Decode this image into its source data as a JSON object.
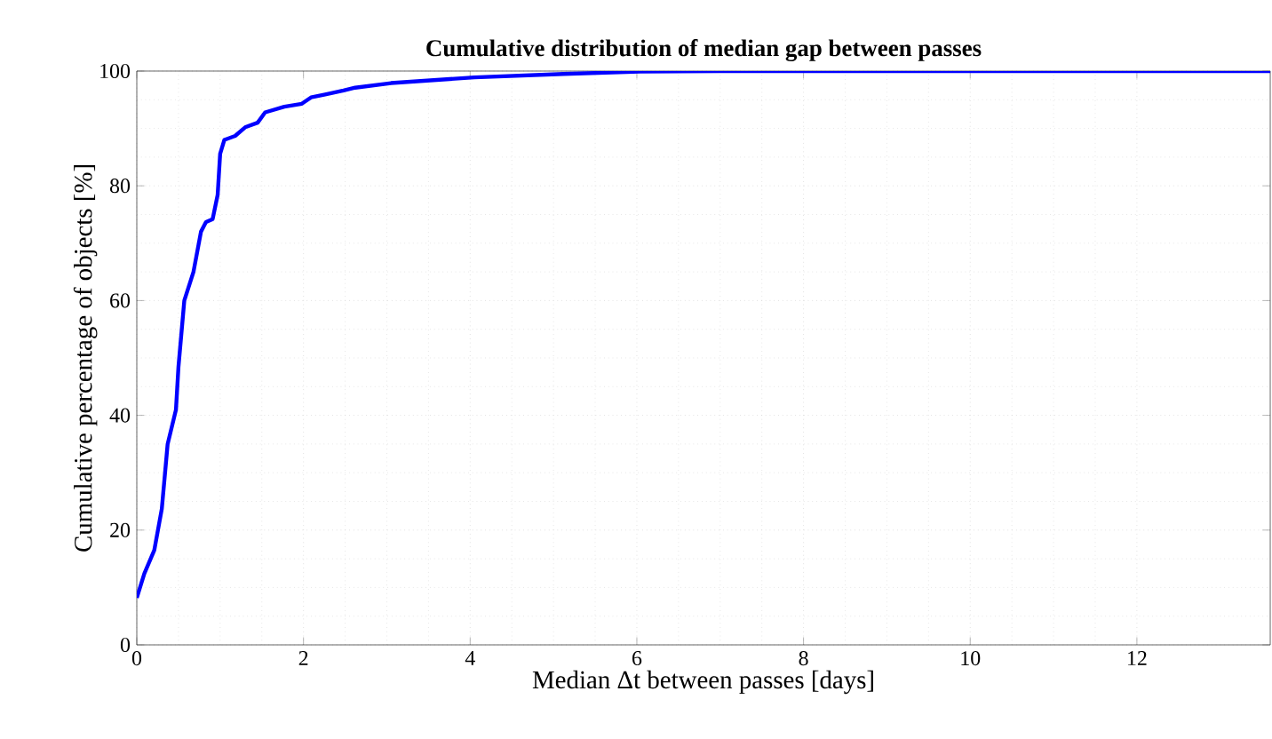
{
  "chart_data": {
    "type": "line",
    "title": "Cumulative distribution of median gap between passes",
    "xlabel": "Median Δt between passes [days]",
    "ylabel": "Cumulative percentage of objects [%]",
    "xlim": [
      0,
      13.6
    ],
    "ylim": [
      0,
      100
    ],
    "xticks": [
      0,
      2,
      4,
      6,
      8,
      10,
      12
    ],
    "yticks": [
      0,
      20,
      40,
      60,
      80,
      100
    ],
    "grid": true,
    "line_style": "solid",
    "marker": "none",
    "series": [
      {
        "color": "#0000ff",
        "x": [
          0,
          0.09,
          0.21,
          0.3,
          0.37,
          0.47,
          0.5,
          0.57,
          0.68,
          0.77,
          0.83,
          0.91,
          0.97,
          1.0,
          1.05,
          1.18,
          1.3,
          1.45,
          1.54,
          1.77,
          1.98,
          2.09,
          2.26,
          2.48,
          2.62,
          3.05,
          4.05,
          5.12,
          6.04,
          7.0,
          13.6
        ],
        "values": [
          8.2,
          12.4,
          16.5,
          23.7,
          35,
          41,
          48.5,
          60,
          65,
          72,
          73.7,
          74.2,
          78.4,
          85.6,
          88,
          88.7,
          90.2,
          91,
          92.8,
          93.8,
          94.3,
          95.4,
          95.9,
          96.6,
          97.1,
          97.9,
          98.9,
          99.5,
          99.9,
          100,
          100
        ]
      }
    ]
  }
}
